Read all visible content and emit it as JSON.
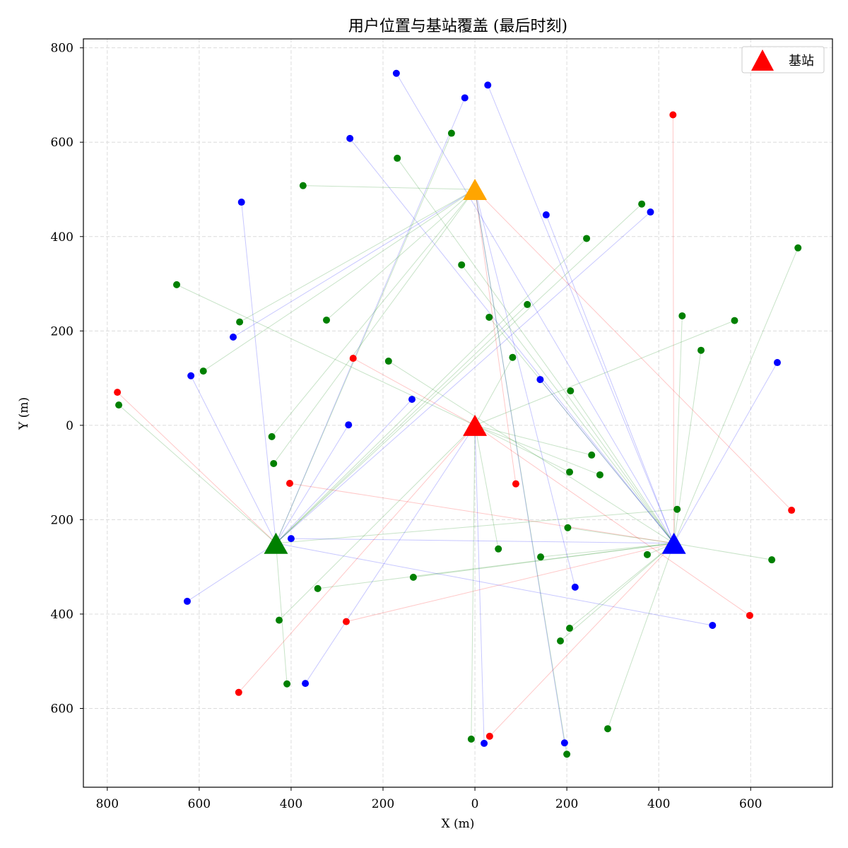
{
  "chart_data": {
    "type": "scatter",
    "title": "用户位置与基站覆盖 (最后时刻)",
    "xlabel": "X (m)",
    "ylabel": "Y (m)",
    "xlim": [
      -852,
      778
    ],
    "ylim": [
      -767,
      819
    ],
    "xticks": [
      -800,
      -600,
      -400,
      -200,
      0,
      200,
      400,
      600
    ],
    "xtick_labels": [
      "800",
      "600",
      "400",
      "200",
      "0",
      "200",
      "400",
      "600"
    ],
    "yticks": [
      800,
      600,
      400,
      200,
      0,
      -200,
      -400,
      -600
    ],
    "ytick_labels": [
      "800",
      "600",
      "400",
      "200",
      "0",
      "200",
      "400",
      "600"
    ],
    "grid": true,
    "legend": {
      "position": "top-right",
      "marker": "triangle",
      "marker_color": "#ff0000"
    },
    "base_stations": {
      "name": "基站",
      "marker": "triangle",
      "points": [
        {
          "x": 0,
          "y": 0,
          "color": "#ff0000"
        },
        {
          "x": 0,
          "y": 500,
          "color": "#ffa500"
        },
        {
          "x": -433,
          "y": -250,
          "color": "#008000"
        },
        {
          "x": 433,
          "y": -250,
          "color": "#0000ff"
        }
      ]
    },
    "users": {
      "marker": "circle",
      "points": [
        {
          "x": -171,
          "y": 746,
          "color": "#0000ff",
          "linked_station": 3
        },
        {
          "x": 28,
          "y": 721,
          "color": "#0000ff",
          "linked_station": 3
        },
        {
          "x": -22,
          "y": 694,
          "color": "#0000ff",
          "linked_station": 2
        },
        {
          "x": 431,
          "y": 658,
          "color": "#ff0000",
          "linked_station": 3
        },
        {
          "x": -51,
          "y": 619,
          "color": "#008000",
          "linked_station": 2
        },
        {
          "x": -272,
          "y": 608,
          "color": "#0000ff",
          "linked_station": 3
        },
        {
          "x": -169,
          "y": 566,
          "color": "#008000",
          "linked_station": 3
        },
        {
          "x": -374,
          "y": 508,
          "color": "#008000",
          "linked_station": 1
        },
        {
          "x": -508,
          "y": 473,
          "color": "#0000ff",
          "linked_station": 2
        },
        {
          "x": 363,
          "y": 469,
          "color": "#008000",
          "linked_station": 2
        },
        {
          "x": 382,
          "y": 452,
          "color": "#0000ff",
          "linked_station": 2
        },
        {
          "x": 155,
          "y": 446,
          "color": "#0000ff",
          "linked_station": 3
        },
        {
          "x": 243,
          "y": 396,
          "color": "#008000",
          "linked_station": 2
        },
        {
          "x": 703,
          "y": 376,
          "color": "#008000",
          "linked_station": 3
        },
        {
          "x": -29,
          "y": 340,
          "color": "#008000",
          "linked_station": 3
        },
        {
          "x": -649,
          "y": 298,
          "color": "#008000",
          "linked_station": 0
        },
        {
          "x": 114,
          "y": 256,
          "color": "#008000",
          "linked_station": 2
        },
        {
          "x": 451,
          "y": 232,
          "color": "#008000",
          "linked_station": 3
        },
        {
          "x": -512,
          "y": 219,
          "color": "#008000",
          "linked_station": 1
        },
        {
          "x": -323,
          "y": 223,
          "color": "#008000",
          "linked_station": 1
        },
        {
          "x": 31,
          "y": 229,
          "color": "#008000",
          "linked_station": 3
        },
        {
          "x": 565,
          "y": 222,
          "color": "#008000",
          "linked_station": 0
        },
        {
          "x": -526,
          "y": 187,
          "color": "#0000ff",
          "linked_station": 1
        },
        {
          "x": 492,
          "y": 159,
          "color": "#008000",
          "linked_station": 3
        },
        {
          "x": -265,
          "y": 142,
          "color": "#ff0000",
          "linked_station": 0
        },
        {
          "x": 82,
          "y": 144,
          "color": "#008000",
          "linked_station": 0
        },
        {
          "x": -188,
          "y": 136,
          "color": "#008000",
          "linked_station": 3
        },
        {
          "x": 658,
          "y": 133,
          "color": "#0000ff",
          "linked_station": 3
        },
        {
          "x": -591,
          "y": 115,
          "color": "#008000",
          "linked_station": 1
        },
        {
          "x": -618,
          "y": 105,
          "color": "#0000ff",
          "linked_station": 2
        },
        {
          "x": 142,
          "y": 97,
          "color": "#0000ff",
          "linked_station": 3
        },
        {
          "x": -778,
          "y": 70,
          "color": "#ff0000",
          "linked_station": 2
        },
        {
          "x": 208,
          "y": 73,
          "color": "#008000",
          "linked_station": 3
        },
        {
          "x": -137,
          "y": 55,
          "color": "#0000ff",
          "linked_station": 2
        },
        {
          "x": -775,
          "y": 43,
          "color": "#008000",
          "linked_station": 2
        },
        {
          "x": -275,
          "y": 1,
          "color": "#0000ff",
          "linked_station": 2
        },
        {
          "x": -442,
          "y": -24,
          "color": "#008000",
          "linked_station": 1
        },
        {
          "x": 254,
          "y": -63,
          "color": "#008000",
          "linked_station": 0
        },
        {
          "x": -438,
          "y": -81,
          "color": "#008000",
          "linked_station": 1
        },
        {
          "x": 206,
          "y": -99,
          "color": "#008000",
          "linked_station": 0
        },
        {
          "x": 272,
          "y": -105,
          "color": "#008000",
          "linked_station": 0
        },
        {
          "x": -403,
          "y": -123,
          "color": "#ff0000",
          "linked_station": 3
        },
        {
          "x": 89,
          "y": -124,
          "color": "#ff0000",
          "linked_station": 1
        },
        {
          "x": 689,
          "y": -180,
          "color": "#ff0000",
          "linked_station": 1
        },
        {
          "x": 440,
          "y": -178,
          "color": "#008000",
          "linked_station": 2
        },
        {
          "x": 202,
          "y": -217,
          "color": "#008000",
          "linked_station": 3
        },
        {
          "x": -400,
          "y": -240,
          "color": "#0000ff",
          "linked_station": 3
        },
        {
          "x": 51,
          "y": -262,
          "color": "#008000",
          "linked_station": 0
        },
        {
          "x": 143,
          "y": -279,
          "color": "#008000",
          "linked_station": 3
        },
        {
          "x": 375,
          "y": -274,
          "color": "#008000",
          "linked_station": 3
        },
        {
          "x": 646,
          "y": -285,
          "color": "#008000",
          "linked_station": 3
        },
        {
          "x": -134,
          "y": -322,
          "color": "#008000",
          "linked_station": 3
        },
        {
          "x": 218,
          "y": -343,
          "color": "#0000ff",
          "linked_station": 1
        },
        {
          "x": -342,
          "y": -346,
          "color": "#008000",
          "linked_station": 3
        },
        {
          "x": -626,
          "y": -373,
          "color": "#0000ff",
          "linked_station": 2
        },
        {
          "x": 598,
          "y": -403,
          "color": "#ff0000",
          "linked_station": 0
        },
        {
          "x": -280,
          "y": -416,
          "color": "#ff0000",
          "linked_station": 3
        },
        {
          "x": -426,
          "y": -413,
          "color": "#008000",
          "linked_station": 0
        },
        {
          "x": 517,
          "y": -424,
          "color": "#0000ff",
          "linked_station": 2
        },
        {
          "x": 206,
          "y": -430,
          "color": "#008000",
          "linked_station": 3
        },
        {
          "x": 186,
          "y": -457,
          "color": "#008000",
          "linked_station": 3
        },
        {
          "x": -369,
          "y": -547,
          "color": "#0000ff",
          "linked_station": 0
        },
        {
          "x": -409,
          "y": -548,
          "color": "#008000",
          "linked_station": 2
        },
        {
          "x": -514,
          "y": -566,
          "color": "#ff0000",
          "linked_station": 0
        },
        {
          "x": 289,
          "y": -643,
          "color": "#008000",
          "linked_station": 3
        },
        {
          "x": 32,
          "y": -659,
          "color": "#ff0000",
          "linked_station": 3
        },
        {
          "x": -8,
          "y": -665,
          "color": "#008000",
          "linked_station": 0
        },
        {
          "x": 20,
          "y": -674,
          "color": "#0000ff",
          "linked_station": 0
        },
        {
          "x": 195,
          "y": -673,
          "color": "#0000ff",
          "linked_station": 1
        },
        {
          "x": 200,
          "y": -697,
          "color": "#008000",
          "linked_station": 1
        }
      ]
    }
  }
}
